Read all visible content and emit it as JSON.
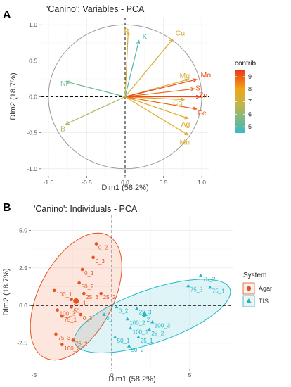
{
  "colors": {
    "agar": "#e8541f",
    "tis": "#1fb8c7",
    "grid": "#ebebeb",
    "circle": "#999999",
    "gradient_low": "#3cb9c1",
    "gradient_mid": "#f0a51a",
    "gradient_high": "#ec3a16"
  },
  "chart_data": [
    {
      "type": "scatter",
      "subtype": "pca-variables-biplot",
      "panel_label": "A",
      "title": "'Canino': Variables - PCA",
      "xlabel": "Dim1 (58.2%)",
      "ylabel": "Dim2 (18.7%)",
      "xlim": [
        -1.1,
        1.1
      ],
      "ylim": [
        -1.1,
        1.1
      ],
      "x_ticks": [
        -1.0,
        -0.5,
        0.0,
        0.5,
        1.0
      ],
      "x_tick_labels": [
        "-1.0",
        "-0.5",
        "0.0",
        "0.5",
        "1.0"
      ],
      "y_ticks": [
        -1.0,
        -0.5,
        0.0,
        0.5,
        1.0
      ],
      "y_tick_labels": [
        "-1.0",
        "-0.5",
        "0.0",
        "0.5",
        "1.0"
      ],
      "grid": true,
      "unit_circle": true,
      "legend": {
        "title": "contrib",
        "ticks": [
          5,
          6,
          7,
          8,
          9
        ],
        "range": [
          4.5,
          9.5
        ],
        "placement": "right"
      },
      "vectors": [
        {
          "name": "P",
          "x": 0.04,
          "y": 0.9,
          "contrib": 7.4
        },
        {
          "name": "K",
          "x": 0.18,
          "y": 0.78,
          "contrib": 4.9
        },
        {
          "name": "Cu",
          "x": 0.62,
          "y": 0.8,
          "contrib": 7.4
        },
        {
          "name": "Mg",
          "x": 0.82,
          "y": 0.24,
          "contrib": 7.3
        },
        {
          "name": "Mo",
          "x": 0.93,
          "y": 0.24,
          "contrib": 9.3
        },
        {
          "name": "S",
          "x": 0.9,
          "y": 0.11,
          "contrib": 8.9
        },
        {
          "name": "Ca",
          "x": 0.77,
          "y": -0.04,
          "contrib": 7.3
        },
        {
          "name": "Zn",
          "x": 0.97,
          "y": 0.0,
          "contrib": 9.3
        },
        {
          "name": "Fe",
          "x": 0.93,
          "y": -0.17,
          "contrib": 9.0
        },
        {
          "name": "Ag",
          "x": 0.82,
          "y": -0.3,
          "contrib": 7.7
        },
        {
          "name": "Mn",
          "x": 0.82,
          "y": -0.53,
          "contrib": 7.6
        },
        {
          "name": "Ni",
          "x": -0.77,
          "y": 0.21,
          "contrib": 5.4
        },
        {
          "name": "B",
          "x": -0.77,
          "y": -0.38,
          "contrib": 6.4
        }
      ]
    },
    {
      "type": "scatter",
      "subtype": "pca-individuals",
      "panel_label": "B",
      "title": "'Canino': Individuals - PCA",
      "xlabel": "Dim1 (58.2%)",
      "ylabel": "Dim2 (18.7%)",
      "xlim": [
        -5.2,
        7.8
      ],
      "ylim": [
        -4.2,
        6.0
      ],
      "x_ticks": [
        -5,
        0,
        5
      ],
      "x_tick_labels": [
        "-5",
        "0",
        "5"
      ],
      "y_ticks": [
        -2.5,
        0.0,
        2.5,
        5.0
      ],
      "y_tick_labels": [
        "-2.5",
        "0.0",
        "2.5",
        "5.0"
      ],
      "grid": true,
      "legend": {
        "title": "System",
        "entries": [
          "Agar",
          "TIS"
        ],
        "placement": "right"
      },
      "series": [
        {
          "name": "Agar",
          "marker": "circle",
          "ellipse": {
            "cx": -2.3,
            "cy": 0.6,
            "rx": 4.55,
            "ry": 2.4,
            "angle_deg": 64
          },
          "points": [
            {
              "label": "0_2",
              "x": -1.0,
              "y": 4.1
            },
            {
              "label": "0_3",
              "x": -1.2,
              "y": 3.2
            },
            {
              "label": "0_1",
              "x": -1.9,
              "y": 2.4
            },
            {
              "label": "50_2",
              "x": -2.1,
              "y": 1.5
            },
            {
              "label": "100_1",
              "x": -3.7,
              "y": 1.0
            },
            {
              "label": "25_3",
              "x": -1.8,
              "y": 0.8
            },
            {
              "label": "25_2",
              "x": -0.7,
              "y": 0.8
            },
            {
              "label": "25_1",
              "x": -2.6,
              "y": 0.4
            },
            {
              "label": "50",
              "x": -2.6,
              "y": -0.1
            },
            {
              "label": "100_3",
              "x": -3.5,
              "y": -0.3
            },
            {
              "label": "0_3",
              "x": -2.0,
              "y": -0.6
            },
            {
              "label": "75_1",
              "x": -3.2,
              "y": -0.7
            },
            {
              "label": "75_3",
              "x": -3.6,
              "y": -1.9
            },
            {
              "label": "75_2",
              "x": -2.5,
              "y": -2.3
            },
            {
              "label": "100_2",
              "x": -3.2,
              "y": -2.6
            }
          ]
        },
        {
          "name": "TIS",
          "marker": "triangle",
          "ellipse": {
            "cx": 2.6,
            "cy": -0.7,
            "rx": 5.3,
            "ry": 1.75,
            "angle_deg": 20
          },
          "points": [
            {
              "label": "75_2",
              "x": 5.7,
              "y": 2.0
            },
            {
              "label": "75_3",
              "x": 4.9,
              "y": 1.3
            },
            {
              "label": "75_1",
              "x": 6.3,
              "y": 1.2
            },
            {
              "label": "0_2",
              "x": 0.3,
              "y": -0.1
            },
            {
              "label": "25_3",
              "x": 1.6,
              "y": -0.2
            },
            {
              "label": "0_",
              "x": -0.5,
              "y": -0.6
            },
            {
              "label": "100_2",
              "x": 1.0,
              "y": -0.9
            },
            {
              "label": "2",
              "x": 2.1,
              "y": -0.7
            },
            {
              "label": "100_3",
              "x": 2.6,
              "y": -1.1
            },
            {
              "label": "100_1",
              "x": 1.2,
              "y": -1.5
            },
            {
              "label": "25_2",
              "x": 2.4,
              "y": -1.6
            },
            {
              "label": "50_1",
              "x": 0.2,
              "y": -2.1
            },
            {
              "label": "25_1",
              "x": 1.7,
              "y": -2.1
            },
            {
              "label": "50_2",
              "x": 1.1,
              "y": -2.7
            }
          ]
        }
      ]
    }
  ]
}
